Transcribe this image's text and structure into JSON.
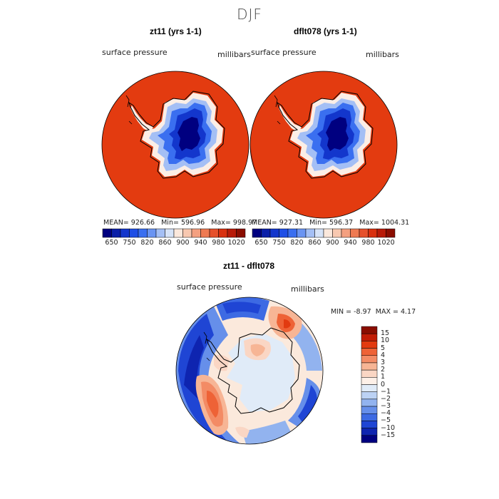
{
  "title": "DJF",
  "panels": [
    {
      "title": "zt11 (yrs 1-1)",
      "left_label": "surface pressure",
      "right_label": "millibars",
      "stats": {
        "mean_label": "MEAN=",
        "mean": "926.66",
        "min_label": "Min=",
        "min": "596.96",
        "max_label": "Max=",
        "max": "998.97"
      }
    },
    {
      "title": "dflt078 (yrs 1-1)",
      "left_label": "surface pressure",
      "right_label": "millibars",
      "stats": {
        "mean_label": "MEAN=",
        "mean": "927.31",
        "min_label": "Min=",
        "min": "596.37",
        "max_label": "Max=",
        "max": "1004.31"
      }
    }
  ],
  "colorbar_top": {
    "colors": [
      "#000080",
      "#0a1fa8",
      "#1336cc",
      "#1f4fe6",
      "#3a6ff0",
      "#6a94f2",
      "#a4bff5",
      "#d6e3f8",
      "#fbe8dc",
      "#f8c8b0",
      "#f4a080",
      "#ee7a52",
      "#e6512c",
      "#d9300f",
      "#b81a08",
      "#8a0d00"
    ],
    "ticks": [
      "650",
      "750",
      "820",
      "860",
      "900",
      "940",
      "980",
      "1020"
    ]
  },
  "diff_panel": {
    "title": "zt11 - dflt078",
    "left_label": "surface pressure",
    "right_label": "millibars",
    "min_label": "MIN =",
    "min": "-8.97",
    "max_label": "MAX =",
    "max": "4.17"
  },
  "colorbar_diff": {
    "colors": [
      "#8a0d00",
      "#c21c05",
      "#e23a10",
      "#ee6236",
      "#f38b65",
      "#f7b595",
      "#fad6c4",
      "#fdf0e8",
      "#e0ebf8",
      "#bcd2f4",
      "#92b3ef",
      "#668fea",
      "#3d6ae3",
      "#1f45d4",
      "#0e24b0",
      "#000080"
    ],
    "ticks": [
      "15",
      "10",
      "5",
      "4",
      "3",
      "2",
      "1",
      "0",
      "−1",
      "−2",
      "−3",
      "−4",
      "−5",
      "−10",
      "−15"
    ]
  },
  "colors": {
    "ocean_top": "#e33b10",
    "coast": "#000000",
    "diff_base": "#fbe9dc"
  }
}
